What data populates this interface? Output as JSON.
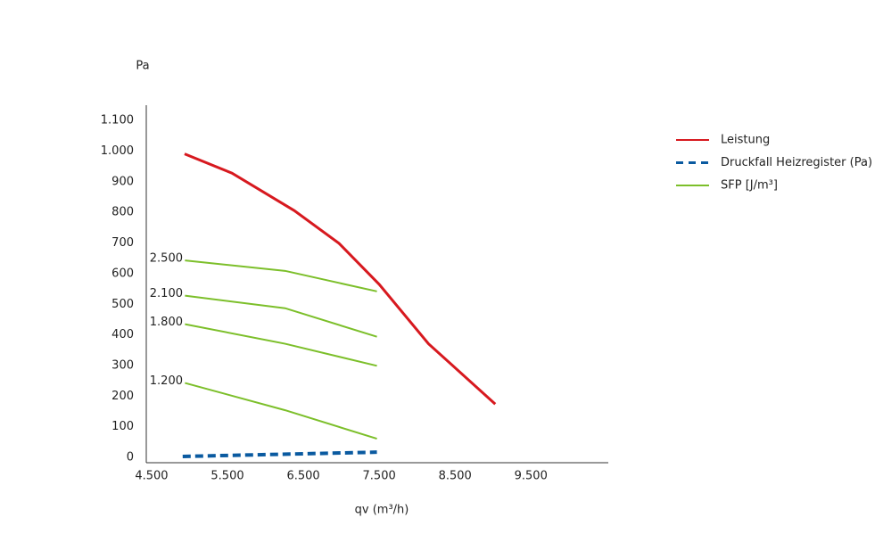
{
  "chart_data": {
    "type": "line",
    "y_label": "Pa",
    "x_label": "qv (m³/h)",
    "xlim": [
      4430,
      10520
    ],
    "xticks": [
      {
        "value": 4500,
        "label": "4.500"
      },
      {
        "value": 5500,
        "label": "5.500"
      },
      {
        "value": 6500,
        "label": "6.500"
      },
      {
        "value": 7500,
        "label": "7.500"
      },
      {
        "value": 8500,
        "label": "8.500"
      },
      {
        "value": 9500,
        "label": "9.500"
      }
    ],
    "ylim": [
      0,
      1150
    ],
    "yticks": [
      0,
      100,
      200,
      300,
      400,
      500,
      600,
      700,
      800,
      900,
      {
        "value": 1000,
        "label": "1.000"
      },
      {
        "value": 1100,
        "label": "1.100"
      }
    ],
    "series": [
      {
        "name": "Leistung",
        "color": "#d7191f",
        "dashed": false,
        "width": 3,
        "x": [
          4935,
          5560,
          6380,
          6970,
          7500,
          8150,
          9030
        ],
        "values": [
          991,
          928,
          806,
          699,
          565,
          371,
          174
        ]
      },
      {
        "name": "Druckfall Heizregister (Pa)",
        "color": "#0a5aa0",
        "dashed": true,
        "width": 4,
        "x": [
          4910,
          7470
        ],
        "values": [
          3,
          17
        ]
      },
      {
        "name": "SFP [J/m³]",
        "color": "#7cbf2a",
        "dashed": false,
        "width": 2,
        "lines": [
          {
            "label": "2.500",
            "x": [
              4940,
              6260,
              7470
            ],
            "values": [
              643,
              609,
              542
            ]
          },
          {
            "label": "2.100",
            "x": [
              4940,
              6260,
              7470
            ],
            "values": [
              528,
              487,
              394
            ]
          },
          {
            "label": "1.800",
            "x": [
              4940,
              6260,
              7470
            ],
            "values": [
              435,
              371,
              299
            ]
          },
          {
            "label": "1.200",
            "x": [
              4940,
              6260,
              7470
            ],
            "values": [
              243,
              154,
              61
            ]
          }
        ]
      }
    ]
  }
}
